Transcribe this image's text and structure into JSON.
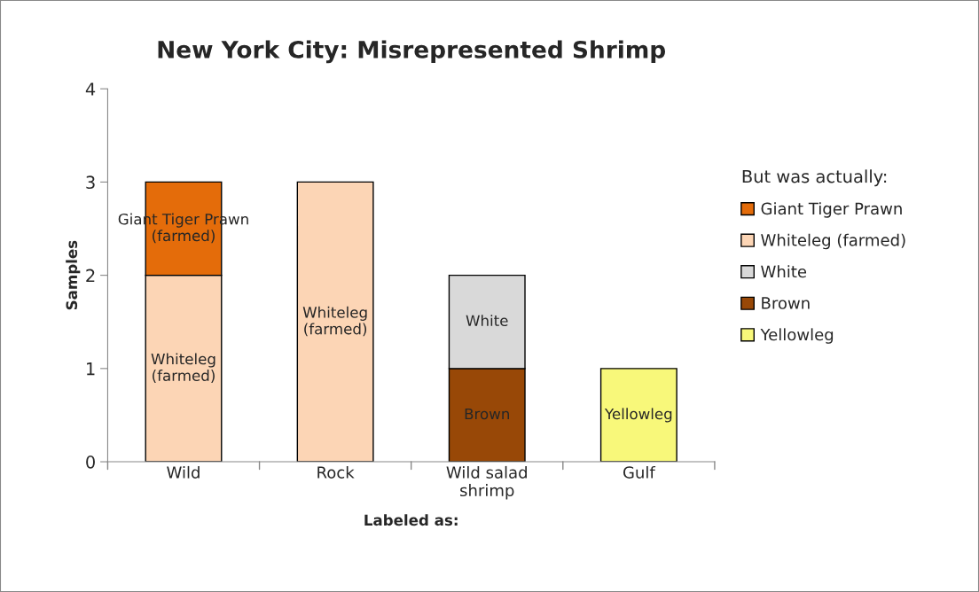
{
  "chart_data": {
    "type": "bar",
    "title": "New York City: Misrepresented Shrimp",
    "xlabel": "Labeled as:",
    "ylabel": "Samples",
    "legend_title": "But was actually:",
    "categories": [
      "Wild",
      "Rock",
      "Wild salad\nshrimp",
      "Gulf"
    ],
    "stacked": true,
    "ylim": [
      0,
      4
    ],
    "yticks": [
      0,
      1,
      2,
      3,
      4
    ],
    "grid": false,
    "legend": "right",
    "series": [
      {
        "name": "Yellowleg",
        "color": "#f8f87a",
        "values": [
          null,
          null,
          null,
          1
        ],
        "value_labels": [
          null,
          null,
          null,
          "Yellowleg"
        ]
      },
      {
        "name": "Brown",
        "color": "#984807",
        "values": [
          null,
          null,
          1,
          null
        ],
        "value_labels": [
          null,
          null,
          "Brown",
          null
        ]
      },
      {
        "name": "White",
        "color": "#d9d9d9",
        "values": [
          null,
          null,
          1,
          null
        ],
        "value_labels": [
          null,
          null,
          "White",
          null
        ]
      },
      {
        "name": "Whiteleg (farmed)",
        "color": "#fcd5b5",
        "values": [
          2,
          3,
          null,
          null
        ],
        "value_labels": [
          "Whiteleg\n(farmed)",
          "Whiteleg\n(farmed)",
          null,
          null
        ]
      },
      {
        "name": "Giant Tiger Prawn",
        "color": "#e46c0a",
        "values": [
          1,
          null,
          null,
          null
        ],
        "value_labels": [
          "Giant Tiger Prawn\n(farmed)",
          null,
          null,
          null
        ]
      }
    ]
  }
}
